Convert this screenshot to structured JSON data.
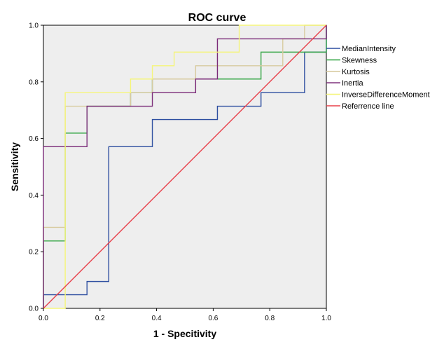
{
  "chart_data": {
    "type": "line",
    "title": "ROC curve",
    "xlabel": "1 - Specitivity",
    "ylabel": "Sensitivity",
    "xlim": [
      0,
      1
    ],
    "ylim": [
      0,
      1
    ],
    "xticks": [
      "0.0",
      "0.2",
      "0.4",
      "0.6",
      "0.8",
      "1.0"
    ],
    "yticks": [
      "0.0",
      "0.2",
      "0.4",
      "0.6",
      "0.8",
      "1.0"
    ],
    "grid": false,
    "legend_position": "right",
    "series": [
      {
        "name": "MedianIntensity",
        "color": "#2d4ea0",
        "points": [
          [
            0,
            0
          ],
          [
            0,
            0.048
          ],
          [
            0.154,
            0.048
          ],
          [
            0.154,
            0.095
          ],
          [
            0.231,
            0.095
          ],
          [
            0.231,
            0.571
          ],
          [
            0.385,
            0.571
          ],
          [
            0.385,
            0.667
          ],
          [
            0.615,
            0.667
          ],
          [
            0.615,
            0.714
          ],
          [
            0.769,
            0.714
          ],
          [
            0.769,
            0.762
          ],
          [
            0.923,
            0.762
          ],
          [
            0.923,
            0.905
          ],
          [
            1,
            0.905
          ],
          [
            1,
            1
          ]
        ]
      },
      {
        "name": "Skewness",
        "color": "#3aa84a",
        "points": [
          [
            0,
            0
          ],
          [
            0,
            0.238
          ],
          [
            0.077,
            0.238
          ],
          [
            0.077,
            0.619
          ],
          [
            0.154,
            0.619
          ],
          [
            0.154,
            0.714
          ],
          [
            0.308,
            0.714
          ],
          [
            0.308,
            0.762
          ],
          [
            0.385,
            0.762
          ],
          [
            0.385,
            0.81
          ],
          [
            0.615,
            0.81
          ],
          [
            0.615,
            0.81
          ],
          [
            0.769,
            0.81
          ],
          [
            0.769,
            0.905
          ],
          [
            1,
            0.905
          ],
          [
            1,
            1
          ]
        ]
      },
      {
        "name": "Kurtosis",
        "color": "#d8cba0",
        "points": [
          [
            0,
            0
          ],
          [
            0,
            0.286
          ],
          [
            0.077,
            0.286
          ],
          [
            0.077,
            0.714
          ],
          [
            0.154,
            0.714
          ],
          [
            0.154,
            0.714
          ],
          [
            0.308,
            0.714
          ],
          [
            0.308,
            0.762
          ],
          [
            0.385,
            0.762
          ],
          [
            0.385,
            0.81
          ],
          [
            0.538,
            0.81
          ],
          [
            0.538,
            0.857
          ],
          [
            0.846,
            0.857
          ],
          [
            0.846,
            0.952
          ],
          [
            0.923,
            0.952
          ],
          [
            0.923,
            1
          ],
          [
            1,
            1
          ]
        ]
      },
      {
        "name": "Inertia",
        "color": "#7a2a78",
        "points": [
          [
            0,
            0
          ],
          [
            0,
            0.571
          ],
          [
            0.154,
            0.571
          ],
          [
            0.154,
            0.714
          ],
          [
            0.385,
            0.714
          ],
          [
            0.385,
            0.762
          ],
          [
            0.538,
            0.762
          ],
          [
            0.538,
            0.81
          ],
          [
            0.615,
            0.81
          ],
          [
            0.615,
            0.952
          ],
          [
            1,
            0.952
          ],
          [
            1,
            1
          ]
        ]
      },
      {
        "name": "InverseDifferenceMoment",
        "color": "#f5f57a",
        "points": [
          [
            0,
            0
          ],
          [
            0.077,
            0
          ],
          [
            0.077,
            0.762
          ],
          [
            0.308,
            0.762
          ],
          [
            0.308,
            0.81
          ],
          [
            0.385,
            0.81
          ],
          [
            0.385,
            0.857
          ],
          [
            0.462,
            0.857
          ],
          [
            0.462,
            0.905
          ],
          [
            0.692,
            0.905
          ],
          [
            0.692,
            1
          ],
          [
            1,
            1
          ]
        ]
      },
      {
        "name": "Referrence line",
        "color": "#e8404a",
        "points": [
          [
            0,
            0
          ],
          [
            1,
            1
          ]
        ]
      }
    ]
  },
  "colors": {
    "plot_background": "#eeeeee",
    "axis": "#000000"
  }
}
